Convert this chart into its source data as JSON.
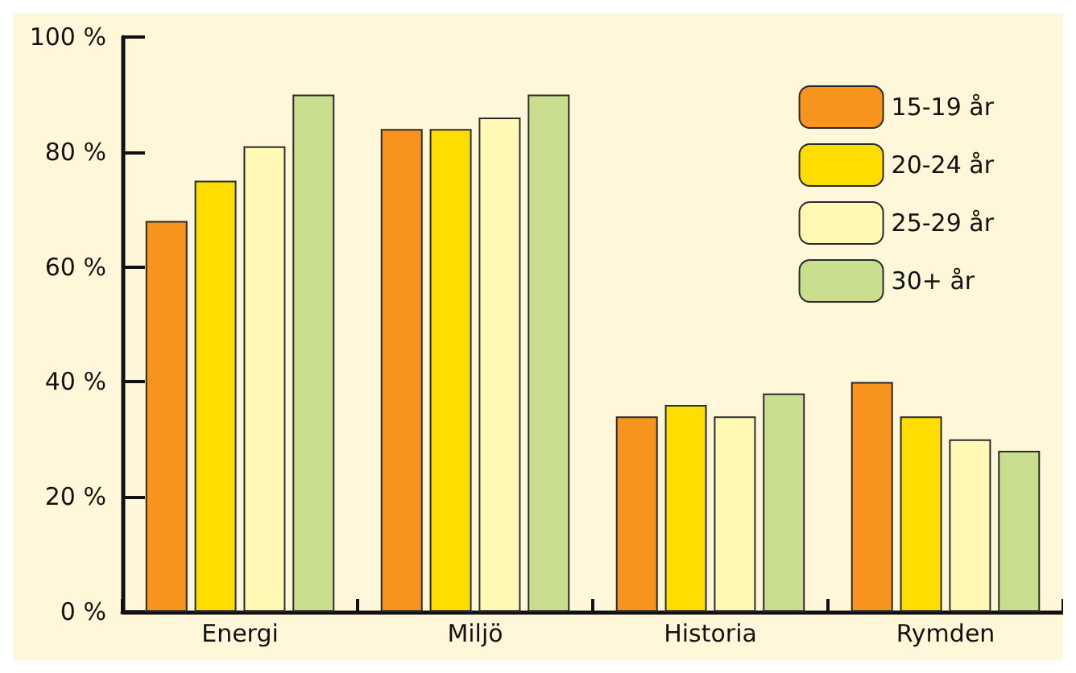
{
  "chart_data": {
    "type": "bar",
    "categories": [
      "Energi",
      "Miljö",
      "Historia",
      "Rymden"
    ],
    "series": [
      {
        "name": "15-19 år",
        "color": "#f7941d",
        "values": [
          68,
          84,
          34,
          40
        ]
      },
      {
        "name": "20-24 år",
        "color": "#ffdd00",
        "values": [
          75,
          84,
          36,
          34
        ]
      },
      {
        "name": "25-29 år",
        "color": "#fff9b5",
        "values": [
          81,
          86,
          34,
          30
        ]
      },
      {
        "name": "30+ år",
        "color": "#c9df8f",
        "values": [
          90,
          90,
          38,
          28
        ]
      }
    ],
    "ylim": [
      0,
      100
    ],
    "yticks": [
      {
        "value": 0,
        "label": "0 %"
      },
      {
        "value": 20,
        "label": "20 %"
      },
      {
        "value": 40,
        "label": "40 %"
      },
      {
        "value": 60,
        "label": "60 %"
      },
      {
        "value": 80,
        "label": "80 %"
      },
      {
        "value": 100,
        "label": "100 %"
      }
    ],
    "grid": false,
    "legend": "top right"
  }
}
